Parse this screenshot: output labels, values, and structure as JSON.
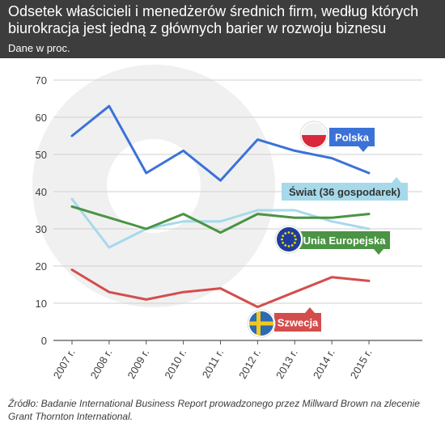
{
  "header": {
    "title": "Odsetek właścicieli i menedżerów średnich firm, według których biurokracja jest jedną z głównych barier w rozwoju biznesu",
    "subtitle": "Dane w proc."
  },
  "source": "Źródło: Badanie International Business Report prowadzonego przez Millward Brown na zlecenie Grant Thornton International.",
  "chart_data": {
    "type": "line",
    "title": "Odsetek właścicieli i menedżerów średnich firm, według których biurokracja jest jedną z głównych barier w rozwoju biznesu",
    "subtitle": "Dane w proc.",
    "categories": [
      "2007 r.",
      "2008 r.",
      "2009 r.",
      "2010 r.",
      "2011 r.",
      "2012 r.",
      "2013 r.",
      "2014 r.",
      "2015 r."
    ],
    "ylim": [
      0,
      70
    ],
    "yticks": [
      0,
      10,
      20,
      30,
      40,
      50,
      60,
      70
    ],
    "grid": true,
    "series": [
      {
        "name": "Polska",
        "color": "#3a72d8",
        "values": [
          55,
          63,
          45,
          51,
          43,
          54,
          51,
          49,
          45
        ],
        "icon": "poland-flag-icon"
      },
      {
        "name": "Świat (36 gospodarek)",
        "color": "#a6daea",
        "values": [
          38,
          25,
          30,
          32,
          32,
          35,
          35,
          32,
          30
        ],
        "icon": ""
      },
      {
        "name": "Unia Europejska",
        "color": "#4a9444",
        "values": [
          36,
          33,
          30,
          34,
          29,
          34,
          33,
          33,
          34
        ],
        "icon": "eu-flag-icon"
      },
      {
        "name": "Szwecja",
        "color": "#d44d4d",
        "values": [
          19,
          13,
          11,
          13,
          14,
          9,
          13,
          17,
          16
        ],
        "icon": "sweden-flag-icon"
      }
    ]
  }
}
